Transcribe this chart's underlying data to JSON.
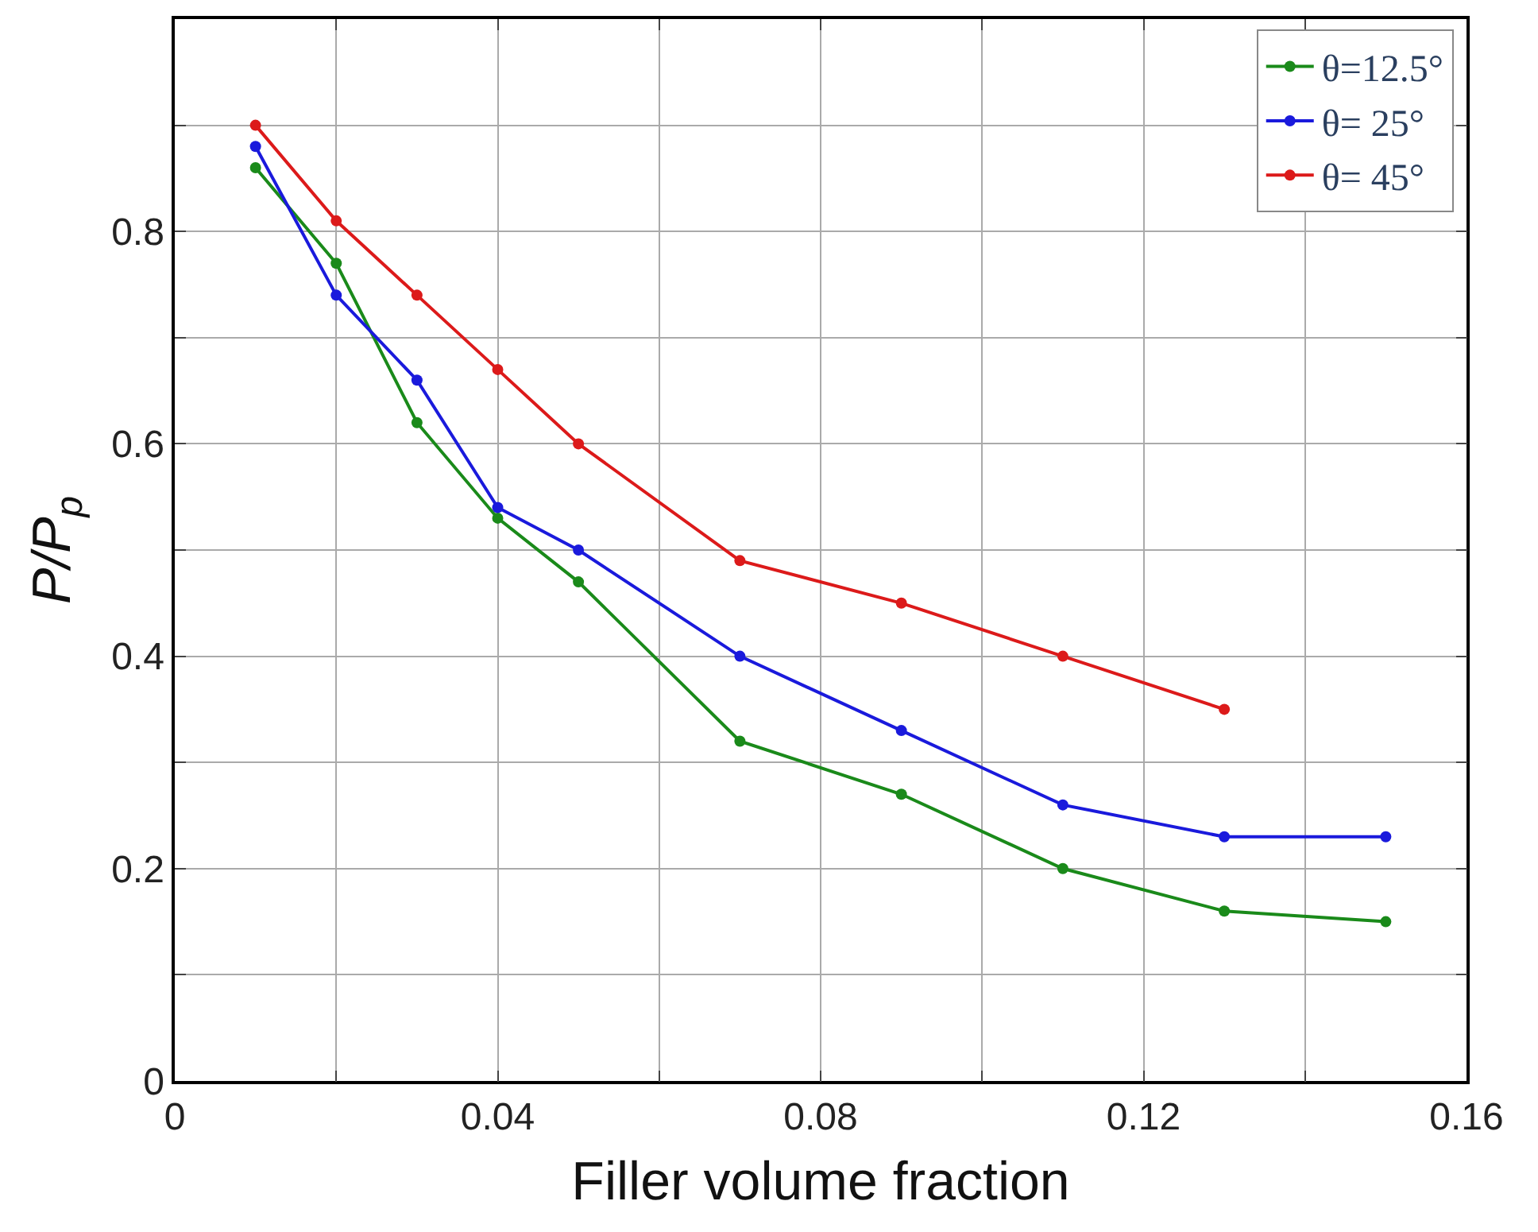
{
  "chart_data": {
    "type": "line",
    "xlabel": "Filler volume fraction",
    "ylabel": "P/P$_{p}$",
    "x": [
      0.01,
      0.02,
      0.03,
      0.04,
      0.05,
      0.07,
      0.09,
      0.11,
      0.13,
      0.15
    ],
    "series": [
      {
        "name": "θ=12.5°",
        "color": "#1a8a1a",
        "values": [
          0.86,
          0.77,
          0.62,
          0.53,
          0.47,
          0.32,
          0.27,
          0.2,
          0.16,
          0.15
        ]
      },
      {
        "name": "θ= 25°",
        "color": "#1a1adc",
        "values": [
          0.88,
          0.74,
          0.66,
          0.54,
          0.5,
          0.4,
          0.33,
          0.26,
          0.23,
          0.23
        ]
      },
      {
        "name": "θ= 45°",
        "color": "#dc1a1a",
        "values": [
          0.9,
          0.81,
          0.74,
          0.67,
          0.6,
          0.49,
          0.45,
          0.4,
          0.35,
          null
        ]
      }
    ],
    "xlim": [
      0,
      0.16
    ],
    "xticks": [
      0,
      {
        "value": 0.02,
        "label": null
      },
      0.04,
      {
        "value": 0.06,
        "label": null
      },
      0.08,
      {
        "value": 0.1,
        "label": null
      },
      0.12,
      {
        "value": 0.14,
        "label": null
      },
      0.16
    ],
    "ylim": [
      0,
      1
    ],
    "yticks": [
      0,
      {
        "value": 0.1,
        "label": null
      },
      0.2,
      {
        "value": 0.3,
        "label": null
      },
      0.4,
      {
        "value": 0.5,
        "label": null
      },
      0.6,
      {
        "value": 0.7,
        "label": null
      },
      0.8,
      {
        "value": 0.9,
        "label": null
      },
      {
        "value": 1,
        "label": null
      }
    ],
    "grid": true,
    "legend": "top right",
    "marker": "circle",
    "line_style": "solid"
  }
}
